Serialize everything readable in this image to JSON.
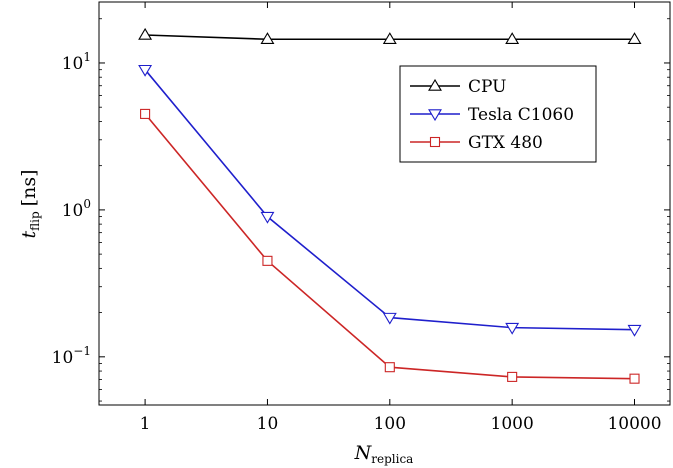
{
  "chart_data": {
    "type": "line",
    "x_scale": "log",
    "y_scale": "log",
    "x": [
      1,
      10,
      100,
      1000,
      10000
    ],
    "x_tick_labels": [
      "1",
      "10",
      "100",
      "1000",
      "10000"
    ],
    "y_ticks": [
      {
        "value": 0.1,
        "base": "10",
        "exp": "−1"
      },
      {
        "value": 1,
        "base": "10",
        "exp": "0"
      },
      {
        "value": 10,
        "base": "10",
        "exp": "1"
      }
    ],
    "xlim": [
      0.42,
      19500
    ],
    "ylim": [
      0.047,
      26
    ],
    "xlabel": {
      "main": "N",
      "sub": "replica"
    },
    "ylabel": {
      "main": "t",
      "sub": "flip",
      "unit": "[ns]"
    },
    "legend_position": "upper-right",
    "grid": false,
    "series": [
      {
        "name": "CPU",
        "color": "#000000",
        "marker": "triangle-up",
        "values": [
          15.5,
          14.5,
          14.5,
          14.5,
          14.5
        ]
      },
      {
        "name": "Tesla C1060",
        "color": "#1f1fcc",
        "marker": "triangle-down",
        "values": [
          9.0,
          0.9,
          0.185,
          0.158,
          0.153
        ]
      },
      {
        "name": "GTX 480",
        "color": "#cc2626",
        "marker": "square",
        "values": [
          4.5,
          0.45,
          0.085,
          0.073,
          0.071
        ]
      }
    ]
  }
}
